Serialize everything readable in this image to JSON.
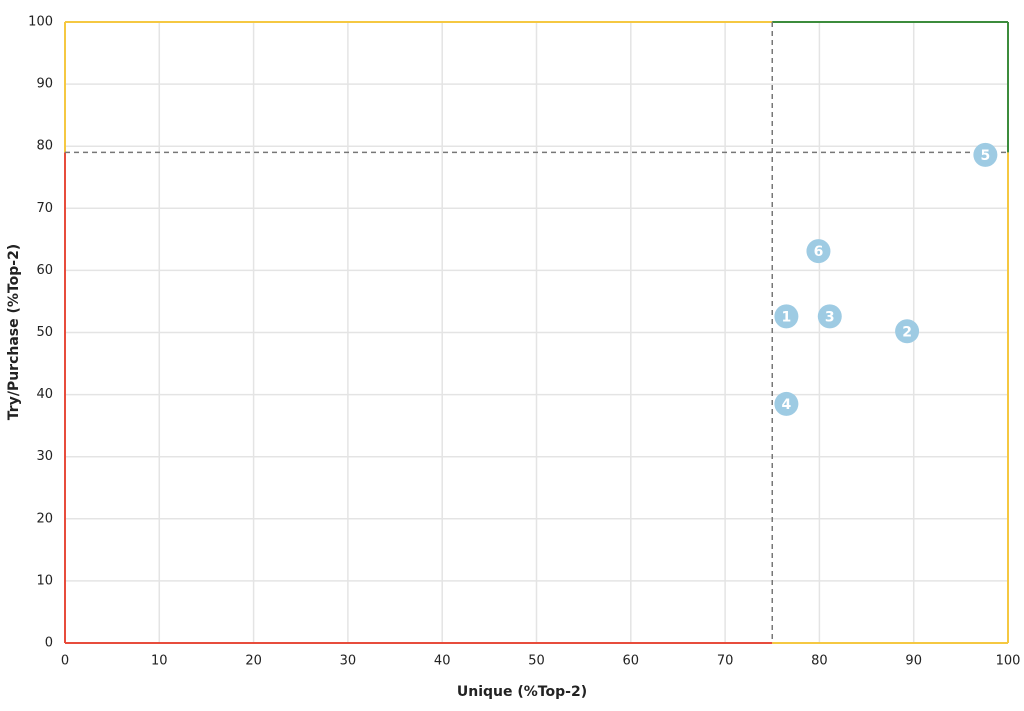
{
  "chart_data": {
    "type": "scatter",
    "x_label": "Unique (%Top-2)",
    "y_label": "Try/Purchase (%Top-2)",
    "series": [
      {
        "color": "#9ecbe3",
        "x": [
          76.5,
          89.3,
          81.1,
          76.5,
          97.6,
          79.9
        ],
        "values": [
          52.6,
          50.2,
          52.6,
          38.5,
          78.6,
          63.1
        ],
        "labels": [
          "1",
          "2",
          "3",
          "4",
          "5",
          "6"
        ]
      }
    ],
    "xlim": [
      0,
      100
    ],
    "xticks": [
      0,
      10,
      20,
      30,
      40,
      50,
      60,
      70,
      80,
      90,
      100
    ],
    "ylim": [
      0,
      100
    ],
    "yticks": [
      0,
      10,
      20,
      30,
      40,
      50,
      60,
      70,
      80,
      90,
      100
    ],
    "grid": true,
    "thresholds": {
      "x": 75,
      "y": 79
    },
    "quadrant_colors": {
      "low": "#e74c3c",
      "mixed": "#f5c842",
      "high": "#3c8c3c"
    }
  }
}
